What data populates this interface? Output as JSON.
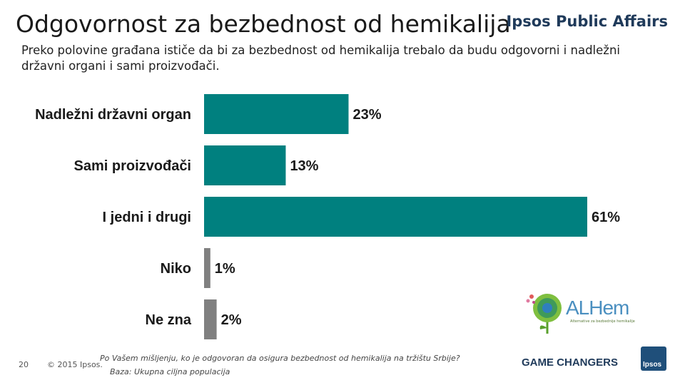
{
  "header": {
    "title": "Odgovornost za bezbednost od hemikalija",
    "brand": "Ipsos Public Affairs",
    "subtitle": "Preko polovine građana ističe da bi za bezbednost od hemikalija trebalo da budu odgovorni i nadležni državni organi i sami proizvođači."
  },
  "chart_data": {
    "type": "bar",
    "orientation": "horizontal",
    "categories": [
      "Nadležni državni organ",
      "Sami proizvođači",
      "I jedni i drugi",
      "Niko",
      "Ne zna"
    ],
    "values": [
      23,
      13,
      61,
      1,
      2
    ],
    "value_labels": [
      "23%",
      "13%",
      "61%",
      "1%",
      "2%"
    ],
    "bar_colors": [
      "#00807f",
      "#00807f",
      "#00807f",
      "#808080",
      "#808080"
    ],
    "unit": "%",
    "xlim": [
      0,
      61
    ]
  },
  "footer": {
    "page_number": "20",
    "copyright": "© 2015 Ipsos.",
    "question": "Po Vašem mišljenju, ko je odgovoran da osigura bezbednost od hemikalija na tržištu Srbije?",
    "base": "Baza: Ukupna ciljna populacija",
    "game_changers": "GAME CHANGERS",
    "ipsos_logo": "Ipsos"
  },
  "alhem_logo": {
    "name": "ALHem",
    "tagline": "Alternative za bezbednije hemikalije"
  }
}
